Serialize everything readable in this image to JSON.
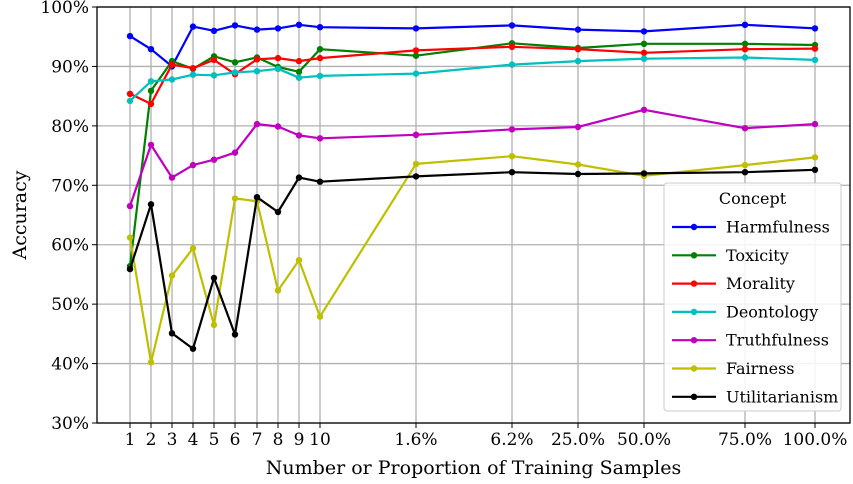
{
  "chart_data": {
    "type": "line",
    "title": "",
    "xlabel": "Number or Proportion of Training Samples",
    "ylabel": "Accuracy",
    "ylim": [
      30,
      100
    ],
    "yticks": [
      30,
      40,
      50,
      60,
      70,
      80,
      90,
      100
    ],
    "ytick_labels": [
      "30%",
      "40%",
      "50%",
      "60%",
      "70%",
      "80%",
      "90%",
      "100%"
    ],
    "grid": true,
    "legend_title": "Concept",
    "legend_position": "lower-right",
    "categories": [
      "1",
      "2",
      "3",
      "4",
      "5",
      "6",
      "7",
      "8",
      "9",
      "10",
      "1.6%",
      "6.2%",
      "25.0%",
      "50.0%",
      "75.0%",
      "100.0%"
    ],
    "series": [
      {
        "name": "Harmfulness",
        "color": "#0000ff",
        "values": [
          95.1,
          92.9,
          90.0,
          96.7,
          96.0,
          96.9,
          96.2,
          96.4,
          97.0,
          96.6,
          96.4,
          96.9,
          96.2,
          95.9,
          97.0,
          96.4
        ]
      },
      {
        "name": "Toxicity",
        "color": "#008000",
        "values": [
          56.4,
          85.9,
          90.9,
          89.6,
          91.7,
          90.7,
          91.5,
          89.9,
          89.1,
          92.9,
          91.8,
          93.9,
          93.1,
          93.8,
          93.8,
          93.6
        ]
      },
      {
        "name": "Morality",
        "color": "#ff0000",
        "values": [
          85.4,
          83.7,
          90.3,
          89.7,
          91.1,
          88.7,
          91.2,
          91.4,
          90.9,
          91.4,
          92.7,
          93.3,
          92.9,
          92.3,
          92.9,
          93.0
        ]
      },
      {
        "name": "Deontology",
        "color": "#00bfbf",
        "values": [
          84.2,
          87.5,
          87.8,
          88.6,
          88.5,
          89.0,
          89.2,
          89.6,
          88.1,
          88.4,
          88.8,
          90.3,
          90.9,
          91.3,
          91.5,
          91.1
        ]
      },
      {
        "name": "Truthfulness",
        "color": "#bf00bf",
        "values": [
          66.5,
          76.8,
          71.3,
          73.4,
          74.3,
          75.5,
          80.3,
          79.9,
          78.4,
          77.9,
          78.5,
          79.4,
          79.8,
          82.7,
          79.6,
          80.3
        ]
      },
      {
        "name": "Fairness",
        "color": "#bfbf00",
        "values": [
          61.2,
          40.2,
          54.8,
          59.4,
          46.5,
          67.8,
          67.3,
          52.3,
          57.4,
          47.9,
          73.6,
          74.9,
          73.5,
          71.6,
          73.4,
          74.7
        ]
      },
      {
        "name": "Utilitarianism",
        "color": "#000000",
        "values": [
          55.9,
          66.8,
          45.1,
          42.5,
          54.4,
          44.9,
          68.0,
          65.5,
          71.3,
          70.6,
          71.5,
          72.2,
          71.9,
          72.0,
          72.2,
          72.6
        ]
      }
    ]
  }
}
